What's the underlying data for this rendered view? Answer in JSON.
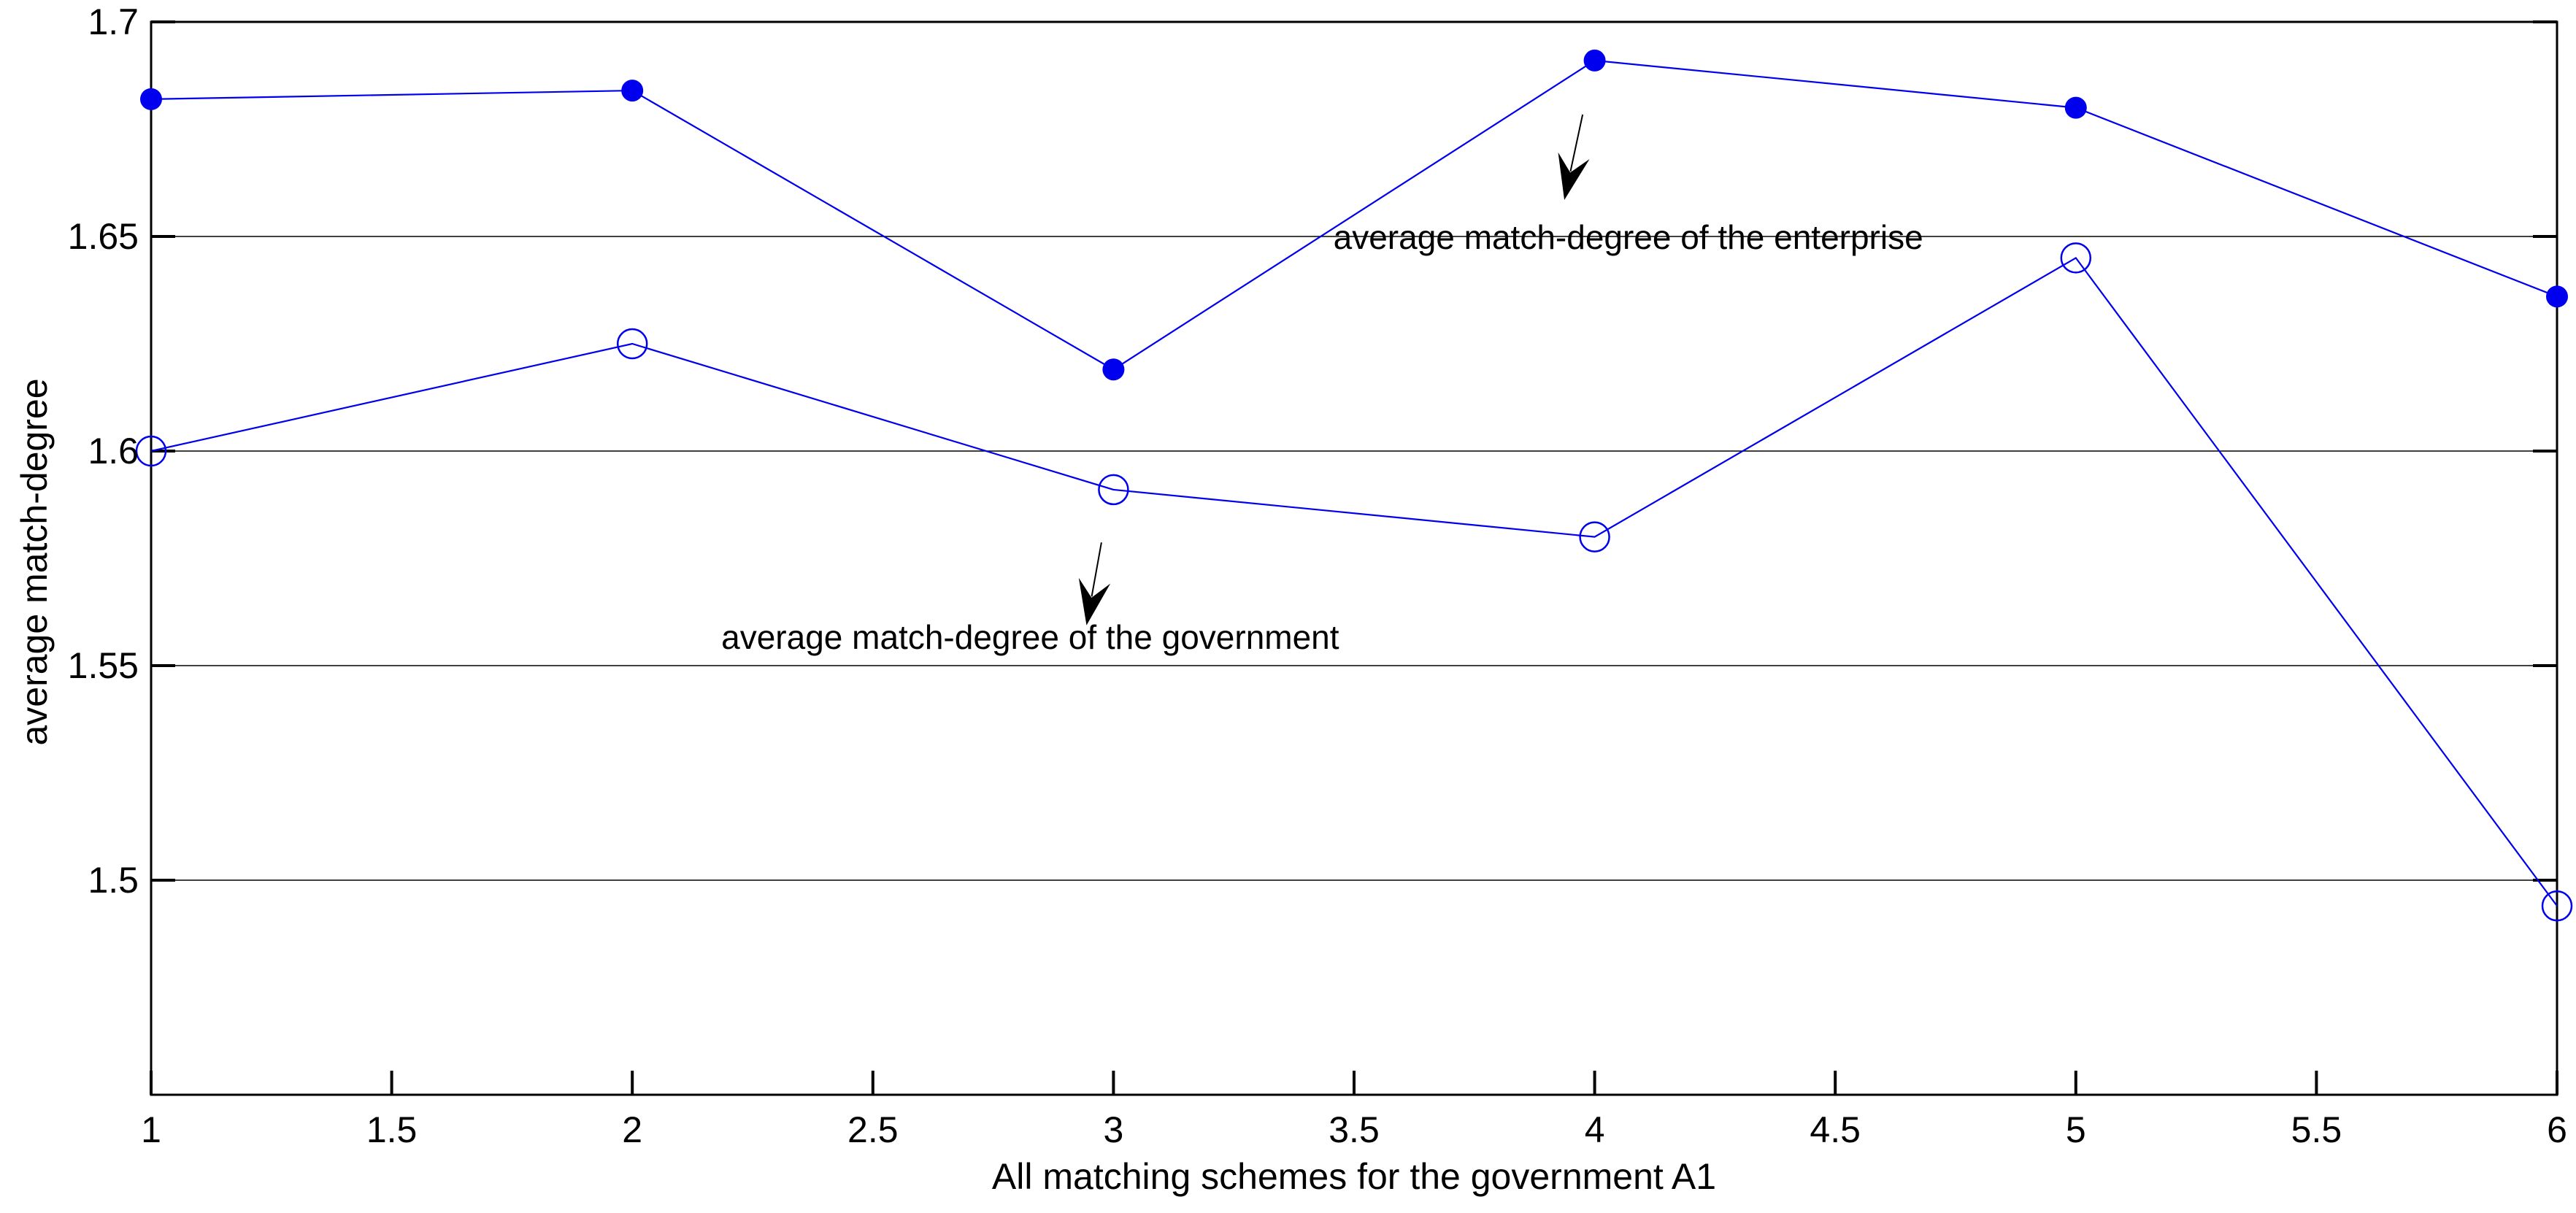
{
  "chart_data": {
    "type": "line",
    "title": "",
    "xlabel": "All matching schemes for the government A1",
    "ylabel": "average match-degree",
    "x": [
      1,
      2,
      3,
      4,
      5,
      6
    ],
    "series": [
      {
        "name": "average match-degree of the enterprise",
        "marker": "filled-circle",
        "color": "#0000EE",
        "values": [
          1.682,
          1.684,
          1.619,
          1.691,
          1.68,
          1.636
        ]
      },
      {
        "name": "average match-degree of the government",
        "marker": "open-circle",
        "color": "#0000EE",
        "values": [
          1.6,
          1.625,
          1.591,
          1.58,
          1.645,
          1.494
        ]
      }
    ],
    "xlim": [
      1,
      6
    ],
    "ylim": [
      1.45,
      1.7
    ],
    "xticks": [
      "1",
      "1.5",
      "2",
      "2.5",
      "3",
      "3.5",
      "4",
      "4.5",
      "5",
      "5.5",
      "6"
    ],
    "xtick_values": [
      1,
      1.5,
      2,
      2.5,
      3,
      3.5,
      4,
      4.5,
      5,
      5.5,
      6
    ],
    "yticks": [
      "1.5",
      "1.55",
      "1.6",
      "1.65",
      "1.7"
    ],
    "ytick_values": [
      1.5,
      1.55,
      1.6,
      1.65,
      1.7
    ],
    "grid": "horizontal",
    "legend_position": "none",
    "axis_color": "#000000",
    "grid_color": "#000000",
    "annotations": [
      {
        "text": "average match-degree of the enterprise",
        "text_x": 3.457,
        "text_y": 1.6498,
        "align": "left",
        "arrow": {
          "x1": 3.975,
          "y1": 1.6784,
          "x2": 3.937,
          "y2": 1.6585
        }
      },
      {
        "text": "average match-degree of the government",
        "text_x": 2.185,
        "text_y": 1.5566,
        "align": "left",
        "arrow": {
          "x1": 2.975,
          "y1": 1.5787,
          "x2": 2.944,
          "y2": 1.5594
        }
      }
    ]
  }
}
